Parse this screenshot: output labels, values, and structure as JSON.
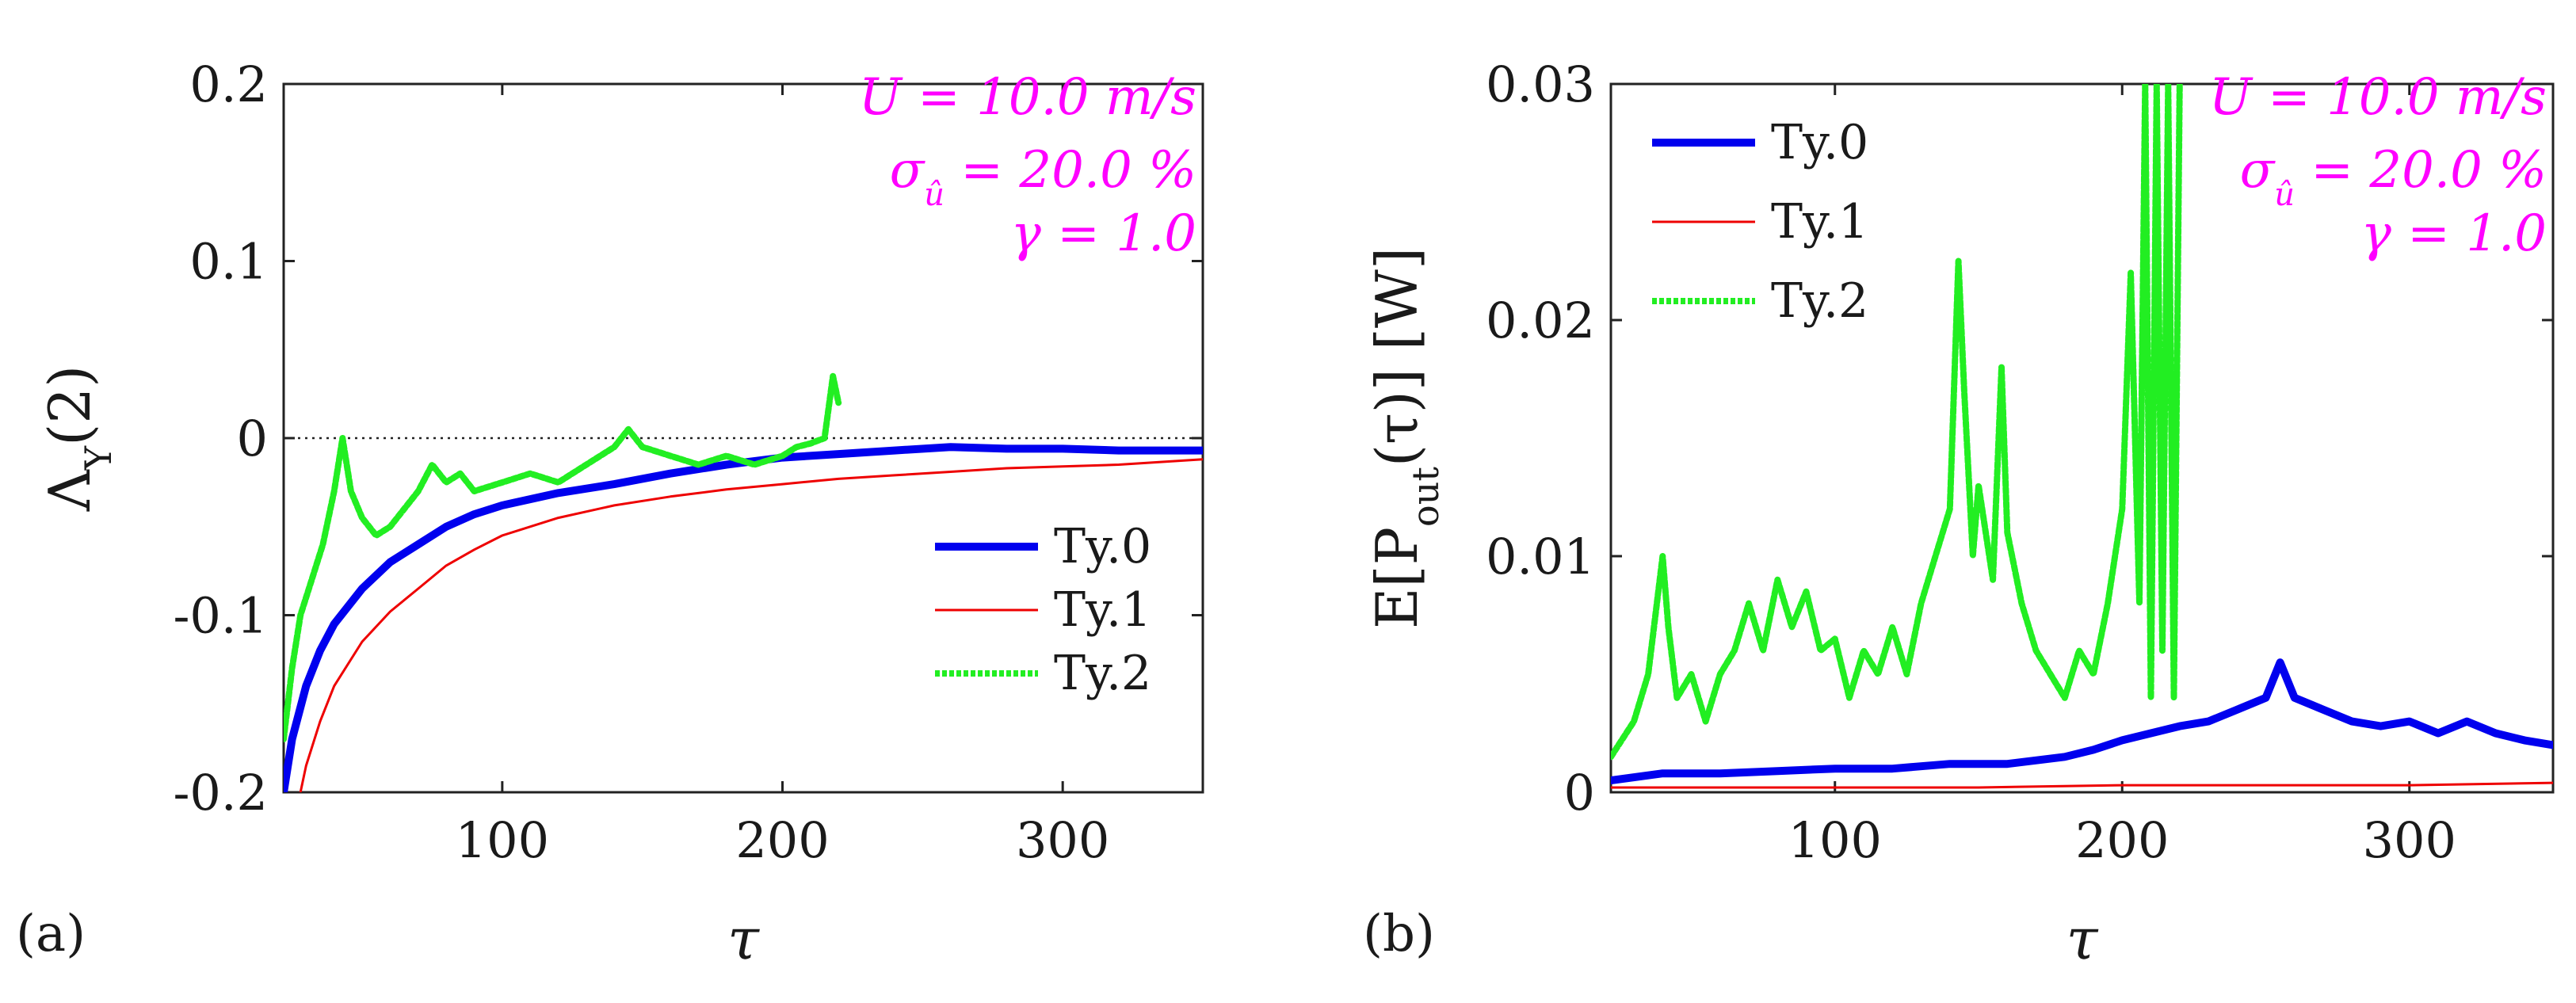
{
  "chart_data": [
    {
      "type": "line",
      "panel_label": "(a)",
      "xlabel": "τ",
      "ylabel": "Λ",
      "ylabel_sub": "Υ",
      "ylabel_suffix": "(2)",
      "xlim": [
        22,
        350
      ],
      "ylim": [
        -0.2,
        0.2
      ],
      "xticks": [
        100,
        200,
        300
      ],
      "xtick_labels": [
        "100",
        "200",
        "300"
      ],
      "yticks": [
        -0.2,
        -0.1,
        0,
        0.1,
        0.2
      ],
      "ytick_labels": [
        "-0.2",
        "-0.1",
        "0",
        "0.1",
        "0.2"
      ],
      "reference_line": 0,
      "annotations": [
        "U = 10.0 m/s",
        "σ = 20.0 %",
        "γ = 1.0"
      ],
      "annotation_sigma_sub": "û",
      "legend_position": "bottom-right",
      "series": [
        {
          "name": "Ty.0",
          "color": "#0000ee",
          "style": "solid-thick",
          "x": [
            22,
            25,
            30,
            35,
            40,
            50,
            60,
            70,
            80,
            90,
            100,
            120,
            140,
            160,
            180,
            200,
            220,
            240,
            260,
            280,
            300,
            320,
            350
          ],
          "y": [
            -0.2,
            -0.17,
            -0.14,
            -0.12,
            -0.105,
            -0.085,
            -0.07,
            -0.06,
            -0.05,
            -0.043,
            -0.038,
            -0.031,
            -0.026,
            -0.02,
            -0.015,
            -0.011,
            -0.009,
            -0.007,
            -0.005,
            -0.006,
            -0.006,
            -0.007,
            -0.007
          ]
        },
        {
          "name": "Ty.1",
          "color": "#ee0000",
          "style": "solid-thin",
          "x": [
            28,
            30,
            35,
            40,
            50,
            60,
            70,
            80,
            90,
            100,
            120,
            140,
            160,
            180,
            200,
            220,
            240,
            260,
            280,
            300,
            320,
            350
          ],
          "y": [
            -0.2,
            -0.185,
            -0.16,
            -0.14,
            -0.115,
            -0.098,
            -0.085,
            -0.072,
            -0.063,
            -0.055,
            -0.045,
            -0.038,
            -0.033,
            -0.029,
            -0.026,
            -0.023,
            -0.021,
            -0.019,
            -0.017,
            -0.016,
            -0.015,
            -0.012
          ]
        },
        {
          "name": "Ty.2",
          "color": "#22ee22",
          "style": "dotted-thick",
          "x": [
            22,
            25,
            28,
            32,
            36,
            40,
            43,
            46,
            50,
            55,
            60,
            65,
            70,
            75,
            80,
            85,
            90,
            100,
            110,
            120,
            130,
            140,
            145,
            150,
            160,
            170,
            180,
            190,
            200,
            205,
            210,
            215,
            218,
            220
          ],
          "y": [
            -0.17,
            -0.13,
            -0.1,
            -0.08,
            -0.06,
            -0.03,
            0.0,
            -0.03,
            -0.045,
            -0.055,
            -0.05,
            -0.04,
            -0.03,
            -0.015,
            -0.025,
            -0.02,
            -0.03,
            -0.025,
            -0.02,
            -0.025,
            -0.015,
            -0.005,
            0.005,
            -0.005,
            -0.01,
            -0.015,
            -0.01,
            -0.015,
            -0.01,
            -0.005,
            -0.003,
            0.0,
            0.035,
            0.02
          ]
        }
      ]
    },
    {
      "type": "line",
      "panel_label": "(b)",
      "xlabel": "τ",
      "ylabel": "E[P",
      "ylabel_sub": "out",
      "ylabel_suffix": "(τ)] [W]",
      "xlim": [
        22,
        350
      ],
      "ylim": [
        0,
        0.03
      ],
      "xticks": [
        100,
        200,
        300
      ],
      "xtick_labels": [
        "100",
        "200",
        "300"
      ],
      "yticks": [
        0,
        0.01,
        0.02,
        0.03
      ],
      "ytick_labels": [
        "0",
        "0.01",
        "0.02",
        "0.03"
      ],
      "annotations": [
        "U = 10.0 m/s",
        "σ = 20.0 %",
        "γ = 1.0"
      ],
      "annotation_sigma_sub": "û",
      "legend_position": "top-left",
      "series": [
        {
          "name": "Ty.0",
          "color": "#0000ee",
          "style": "solid-thick",
          "x": [
            22,
            40,
            60,
            80,
            100,
            120,
            140,
            160,
            180,
            190,
            200,
            210,
            220,
            230,
            240,
            250,
            255,
            260,
            270,
            280,
            290,
            300,
            310,
            320,
            330,
            340,
            350
          ],
          "y": [
            0.0005,
            0.0008,
            0.0008,
            0.0009,
            0.001,
            0.001,
            0.0012,
            0.0012,
            0.0015,
            0.0018,
            0.0022,
            0.0025,
            0.0028,
            0.003,
            0.0035,
            0.004,
            0.0055,
            0.004,
            0.0035,
            0.003,
            0.0028,
            0.003,
            0.0025,
            0.003,
            0.0025,
            0.0022,
            0.002
          ]
        },
        {
          "name": "Ty.1",
          "color": "#ee0000",
          "style": "solid-thin",
          "x": [
            22,
            50,
            100,
            150,
            200,
            250,
            300,
            350
          ],
          "y": [
            0.0002,
            0.0002,
            0.0002,
            0.0002,
            0.0003,
            0.0003,
            0.0003,
            0.0004
          ]
        },
        {
          "name": "Ty.2",
          "color": "#22ee22",
          "style": "dotted-thick",
          "x": [
            22,
            30,
            35,
            40,
            42,
            45,
            50,
            55,
            60,
            65,
            70,
            75,
            80,
            85,
            90,
            95,
            100,
            105,
            110,
            115,
            120,
            125,
            130,
            135,
            140,
            143,
            145,
            148,
            150,
            155,
            158,
            160,
            165,
            170,
            175,
            180,
            185,
            190,
            195,
            200,
            203,
            206,
            208,
            210,
            212,
            214,
            216,
            218,
            220
          ],
          "y": [
            0.0015,
            0.003,
            0.005,
            0.01,
            0.007,
            0.004,
            0.005,
            0.003,
            0.005,
            0.006,
            0.008,
            0.006,
            0.009,
            0.007,
            0.0085,
            0.006,
            0.0065,
            0.004,
            0.006,
            0.005,
            0.007,
            0.005,
            0.008,
            0.01,
            0.012,
            0.0225,
            0.017,
            0.01,
            0.013,
            0.009,
            0.018,
            0.011,
            0.008,
            0.006,
            0.005,
            0.004,
            0.006,
            0.005,
            0.008,
            0.012,
            0.022,
            0.008,
            0.03,
            0.004,
            0.03,
            0.006,
            0.03,
            0.004,
            0.03
          ]
        }
      ]
    }
  ]
}
